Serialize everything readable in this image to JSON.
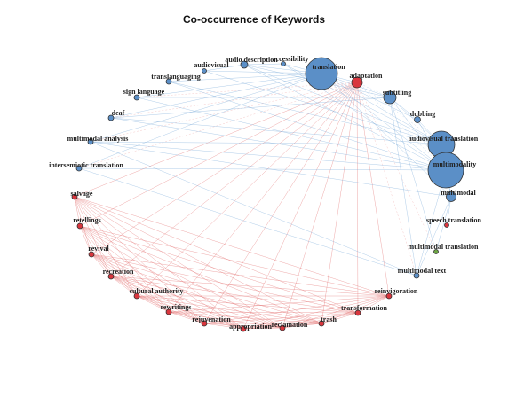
{
  "title": "Co-occurrence of Keywords",
  "colors": {
    "blue": "#5b8fc7",
    "red": "#d9363e",
    "green": "#6da544",
    "blue_edge": "#6ea2d6",
    "red_edge": "#e06060"
  },
  "nodes": [
    {
      "id": "translation",
      "label": "translation",
      "group": "blue",
      "size": 18
    },
    {
      "id": "adaptation",
      "label": "adaptation",
      "group": "red",
      "size": 6
    },
    {
      "id": "subtitling",
      "label": "subtitling",
      "group": "blue",
      "size": 7
    },
    {
      "id": "dubbing",
      "label": "dubbing",
      "group": "blue",
      "size": 3.5
    },
    {
      "id": "audiovisual_translation",
      "label": "audiovisual translation",
      "group": "blue",
      "size": 15
    },
    {
      "id": "multimodality",
      "label": "multimodality",
      "group": "blue",
      "size": 20
    },
    {
      "id": "multimodal",
      "label": "multimodal",
      "group": "blue",
      "size": 5.5
    },
    {
      "id": "speech_translation",
      "label": "speech translation",
      "group": "red",
      "size": 2.5
    },
    {
      "id": "multimodal_translation",
      "label": "multimodal translation",
      "group": "green",
      "size": 2.5
    },
    {
      "id": "multimodal_text",
      "label": "multimodal text",
      "group": "blue",
      "size": 3
    },
    {
      "id": "reinvigoration",
      "label": "reinvigoration",
      "group": "red",
      "size": 3
    },
    {
      "id": "transformation",
      "label": "transformation",
      "group": "red",
      "size": 3
    },
    {
      "id": "trash",
      "label": "trash",
      "group": "red",
      "size": 3
    },
    {
      "id": "reclamation",
      "label": "reclamation",
      "group": "red",
      "size": 3
    },
    {
      "id": "appropriation",
      "label": "appropriation",
      "group": "red",
      "size": 3
    },
    {
      "id": "rejuvenation",
      "label": "rejuvenation",
      "group": "red",
      "size": 3
    },
    {
      "id": "rewritings",
      "label": "rewritings",
      "group": "red",
      "size": 3
    },
    {
      "id": "cultural_authority",
      "label": "cultural authority",
      "group": "red",
      "size": 3
    },
    {
      "id": "recreation",
      "label": "recreation",
      "group": "red",
      "size": 3
    },
    {
      "id": "revival",
      "label": "revival",
      "group": "red",
      "size": 3
    },
    {
      "id": "retellings",
      "label": "retellings",
      "group": "red",
      "size": 3
    },
    {
      "id": "salvage",
      "label": "salvage",
      "group": "red",
      "size": 3
    },
    {
      "id": "intersemiotic_translation",
      "label": "intersemiotic translation",
      "group": "blue",
      "size": 3
    },
    {
      "id": "multimodal_analysis",
      "label": "multimodal analysis",
      "group": "blue",
      "size": 3
    },
    {
      "id": "deaf",
      "label": "deaf",
      "group": "blue",
      "size": 3
    },
    {
      "id": "sign_language",
      "label": "sign language",
      "group": "blue",
      "size": 3
    },
    {
      "id": "translanguaging",
      "label": "translanguaging",
      "group": "blue",
      "size": 3
    },
    {
      "id": "audiovisual",
      "label": "audiovisual",
      "group": "blue",
      "size": 2.5
    },
    {
      "id": "audio_description",
      "label": "audio description",
      "group": "blue",
      "size": 4
    },
    {
      "id": "accessibility",
      "label": "accessibility",
      "group": "blue",
      "size": 2.5
    }
  ]
}
